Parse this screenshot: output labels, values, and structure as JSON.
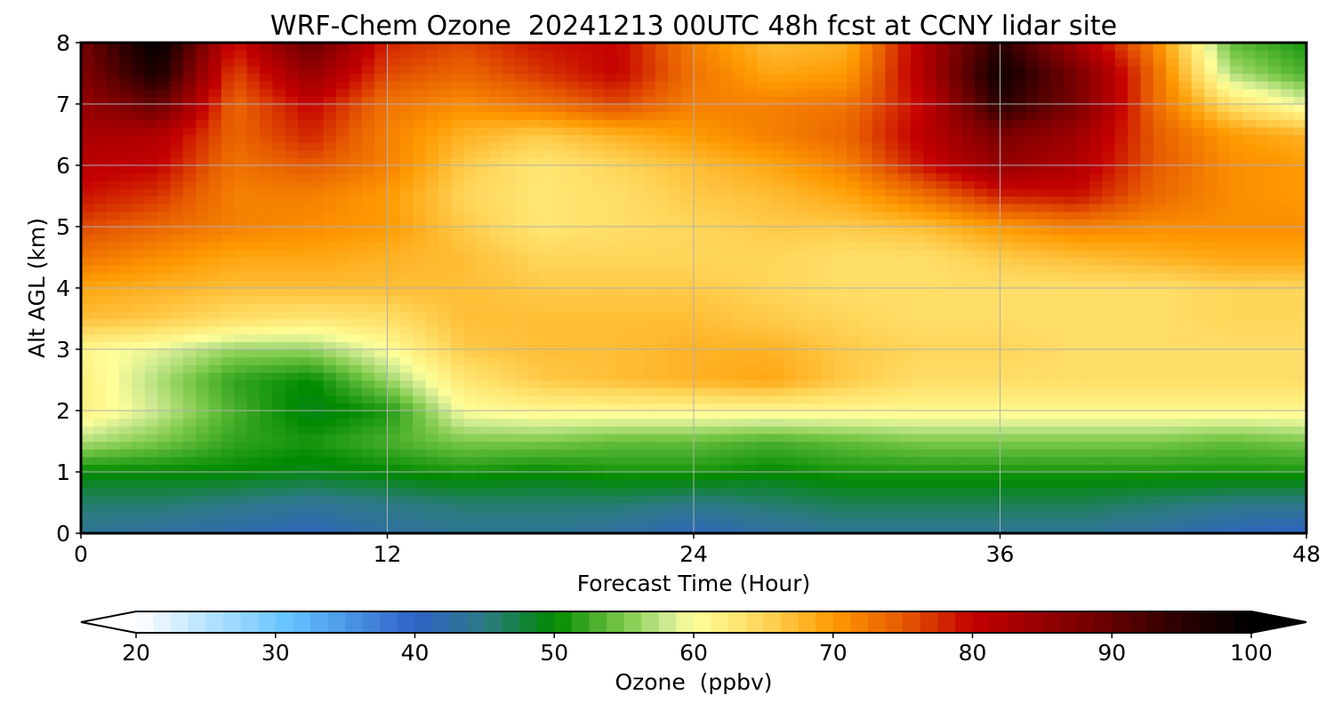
{
  "chart_data": {
    "type": "heatmap",
    "title": "WRF-Chem Ozone  20241213 00UTC 48h fcst at CCNY lidar site",
    "xlabel": "Forecast Time (Hour)",
    "ylabel": "Alt AGL (km)",
    "xlim": [
      0,
      48
    ],
    "ylim": [
      0,
      8
    ],
    "xticks": [
      0,
      12,
      24,
      36,
      48
    ],
    "yticks": [
      0,
      1,
      2,
      3,
      4,
      5,
      6,
      7,
      8
    ],
    "grid": true,
    "x": [
      0,
      3,
      6,
      9,
      12,
      15,
      18,
      21,
      24,
      27,
      30,
      33,
      36,
      39,
      42,
      45,
      48
    ],
    "y": [
      0,
      0.5,
      1,
      1.5,
      2,
      2.5,
      3,
      3.5,
      4,
      4.5,
      5,
      5.5,
      6,
      6.5,
      7,
      7.5,
      8
    ],
    "z": [
      [
        44,
        43,
        42,
        41,
        43,
        44,
        44,
        43,
        41,
        43,
        44,
        44,
        44,
        44,
        43,
        41,
        40
      ],
      [
        46,
        46,
        45,
        44,
        45,
        46,
        46,
        46,
        45,
        46,
        47,
        47,
        47,
        47,
        46,
        45,
        45
      ],
      [
        50,
        50,
        50,
        49,
        50,
        51,
        50,
        51,
        51,
        50,
        51,
        51,
        51,
        51,
        51,
        51,
        51
      ],
      [
        57,
        55,
        52,
        51,
        53,
        55,
        55,
        54,
        54,
        53,
        54,
        55,
        55,
        55,
        55,
        54,
        55
      ],
      [
        62,
        58,
        53,
        49,
        51,
        60,
        61,
        61,
        61,
        61,
        61,
        61,
        61,
        61,
        61,
        61,
        61
      ],
      [
        62,
        57,
        52,
        50,
        56,
        63,
        66,
        67,
        68,
        69,
        66,
        64,
        64,
        64,
        64,
        64,
        64
      ],
      [
        61,
        59,
        56,
        56,
        60,
        66,
        67,
        67,
        68,
        68,
        66,
        65,
        65,
        64,
        64,
        64,
        64
      ],
      [
        67,
        66,
        64,
        63,
        64,
        67,
        67,
        67,
        67,
        66,
        65,
        64,
        64,
        64,
        64,
        65,
        65
      ],
      [
        69,
        68,
        67,
        67,
        67,
        67,
        66,
        66,
        66,
        65,
        64,
        64,
        64,
        64,
        64,
        65,
        65
      ],
      [
        73,
        71,
        69,
        69,
        68,
        67,
        65,
        65,
        65,
        65,
        64,
        64,
        66,
        67,
        68,
        69,
        69
      ],
      [
        76,
        74,
        72,
        71,
        70,
        66,
        63,
        64,
        65,
        66,
        66,
        67,
        70,
        72,
        71,
        71,
        71
      ],
      [
        79,
        77,
        72,
        72,
        70,
        65,
        63,
        64,
        66,
        67,
        69,
        73,
        78,
        79,
        74,
        71,
        70
      ],
      [
        81,
        80,
        73,
        75,
        72,
        66,
        63,
        65,
        67,
        69,
        72,
        79,
        85,
        82,
        75,
        71,
        70
      ],
      [
        83,
        82,
        74,
        78,
        72,
        68,
        66,
        68,
        70,
        72,
        74,
        81,
        88,
        84,
        75,
        70,
        68
      ],
      [
        85,
        90,
        74,
        80,
        73,
        71,
        73,
        76,
        72,
        72,
        73,
        80,
        95,
        88,
        74,
        64,
        59
      ],
      [
        87,
        97,
        76,
        85,
        76,
        74,
        77,
        80,
        73,
        69,
        70,
        82,
        98,
        88,
        74,
        57,
        53
      ],
      [
        88,
        100,
        79,
        90,
        78,
        76,
        79,
        80,
        72,
        67,
        68,
        82,
        95,
        83,
        72,
        54,
        51
      ]
    ],
    "colorbar": {
      "label": "Ozone  (ppbv)",
      "min": 20,
      "max": 100,
      "ticks": [
        20,
        30,
        40,
        50,
        60,
        70,
        80,
        90,
        100
      ],
      "extend": "both",
      "stops": [
        {
          "v": 20,
          "c": "#ffffff"
        },
        {
          "v": 31,
          "c": "#63c3ff"
        },
        {
          "v": 40,
          "c": "#2f62c7"
        },
        {
          "v": 45,
          "c": "#2d7a86"
        },
        {
          "v": 50,
          "c": "#008a00"
        },
        {
          "v": 55,
          "c": "#7cc94a"
        },
        {
          "v": 58,
          "c": "#cbe98f"
        },
        {
          "v": 60,
          "c": "#ffff99"
        },
        {
          "v": 65,
          "c": "#ffd65a"
        },
        {
          "v": 70,
          "c": "#ff9a00"
        },
        {
          "v": 75,
          "c": "#e65a00"
        },
        {
          "v": 80,
          "c": "#c40000"
        },
        {
          "v": 88,
          "c": "#7a0000"
        },
        {
          "v": 95,
          "c": "#2a0000"
        },
        {
          "v": 100,
          "c": "#000000"
        }
      ]
    }
  }
}
